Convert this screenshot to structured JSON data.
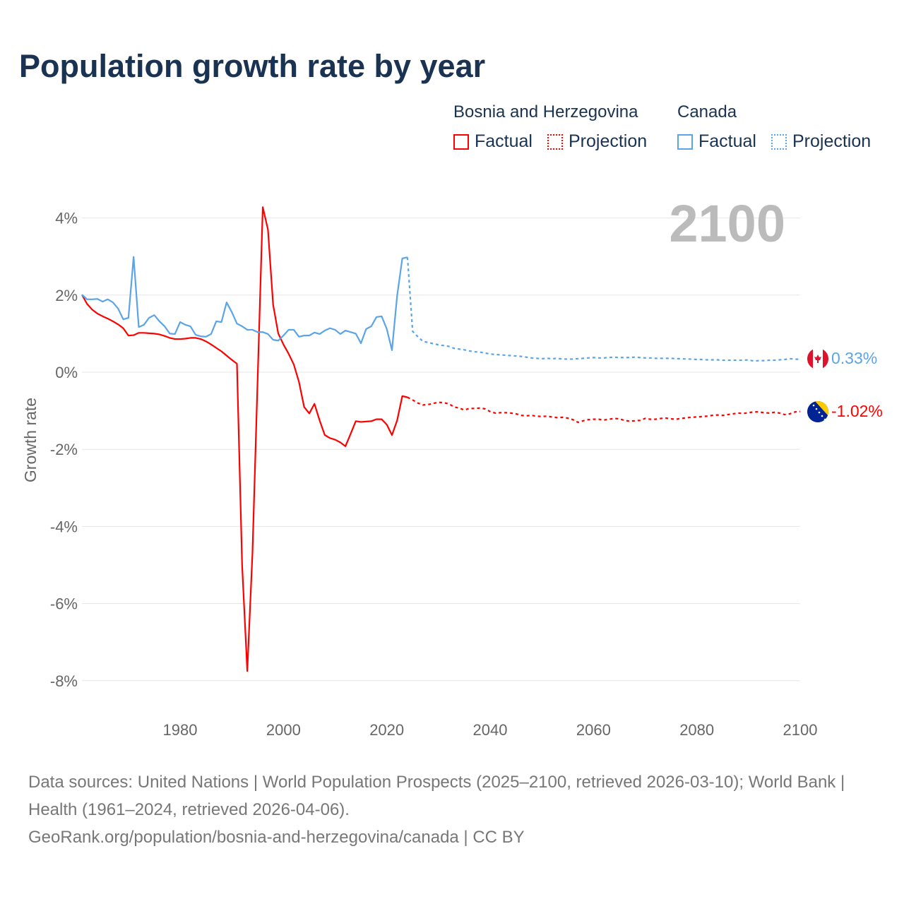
{
  "chart_data": {
    "type": "line",
    "title": "Population growth rate by year",
    "ylabel": "Growth rate",
    "xlabel": "",
    "xlim": [
      1961,
      2100
    ],
    "ylim": [
      -9,
      4.5
    ],
    "y_ticks": [
      4,
      2,
      0,
      -2,
      -4,
      -6,
      -8
    ],
    "y_tick_labels": [
      "4%",
      "2%",
      "0%",
      "-2%",
      "-4%",
      "-6%",
      "-8%"
    ],
    "x_ticks": [
      1980,
      2000,
      2020,
      2040,
      2060,
      2080,
      2100
    ],
    "x_tick_labels": [
      "1980",
      "2000",
      "2020",
      "2040",
      "2060",
      "2080",
      "2100"
    ],
    "year_watermark": "2100",
    "grid": true,
    "legend_position": "top-right",
    "legend": {
      "groups": [
        {
          "name": "Bosnia and Herzegovina",
          "factual": "Factual",
          "projection": "Projection"
        },
        {
          "name": "Canada",
          "factual": "Factual",
          "projection": "Projection"
        }
      ]
    },
    "series": [
      {
        "name": "Bosnia and Herzegovina",
        "color": "#ff0000",
        "end_label": "-1.02%",
        "factual_start": 1961,
        "factual": [
          2.01,
          1.77,
          1.62,
          1.52,
          1.45,
          1.39,
          1.32,
          1.24,
          1.14,
          0.95,
          0.96,
          1.02,
          1.02,
          1.01,
          1.0,
          0.98,
          0.94,
          0.89,
          0.86,
          0.86,
          0.87,
          0.89,
          0.89,
          0.86,
          0.8,
          0.72,
          0.63,
          0.54,
          0.43,
          0.32,
          0.22,
          -5.0,
          -7.75,
          -4.7,
          -0.2,
          4.28,
          3.7,
          1.75,
          1.0,
          0.72,
          0.48,
          0.2,
          -0.25,
          -0.9,
          -1.07,
          -0.82,
          -1.25,
          -1.63,
          -1.71,
          -1.75,
          -1.82,
          -1.92,
          -1.6,
          -1.27,
          -1.29,
          -1.28,
          -1.27,
          -1.22,
          -1.22,
          -1.36,
          -1.63,
          -1.25,
          -0.62,
          -0.65
        ],
        "projection_start": 2025,
        "projection": [
          -0.72,
          -0.8,
          -0.85,
          -0.84,
          -0.81,
          -0.78,
          -0.79,
          -0.82,
          -0.9,
          -0.93,
          -0.98,
          -0.94,
          -0.94,
          -0.93,
          -0.95,
          -1.02,
          -1.06,
          -1.05,
          -1.05,
          -1.06,
          -1.08,
          -1.12,
          -1.13,
          -1.12,
          -1.14,
          -1.15,
          -1.14,
          -1.16,
          -1.18,
          -1.17,
          -1.19,
          -1.23,
          -1.3,
          -1.26,
          -1.23,
          -1.22,
          -1.22,
          -1.24,
          -1.22,
          -1.2,
          -1.21,
          -1.25,
          -1.27,
          -1.26,
          -1.25,
          -1.2,
          -1.22,
          -1.22,
          -1.2,
          -1.19,
          -1.21,
          -1.22,
          -1.2,
          -1.18,
          -1.17,
          -1.16,
          -1.15,
          -1.14,
          -1.12,
          -1.11,
          -1.12,
          -1.1,
          -1.08,
          -1.06,
          -1.07,
          -1.05,
          -1.03,
          -1.03,
          -1.05,
          -1.06,
          -1.04,
          -1.06,
          -1.1,
          -1.08,
          -1.03,
          -1.02
        ]
      },
      {
        "name": "Canada",
        "color": "#5ba4e8",
        "end_label": "0.33%",
        "factual_start": 1961,
        "factual": [
          2.01,
          1.89,
          1.89,
          1.9,
          1.83,
          1.89,
          1.81,
          1.65,
          1.37,
          1.41,
          2.99,
          1.17,
          1.23,
          1.41,
          1.48,
          1.32,
          1.19,
          1.0,
          0.99,
          1.3,
          1.23,
          1.19,
          0.97,
          0.93,
          0.92,
          0.99,
          1.32,
          1.3,
          1.81,
          1.56,
          1.26,
          1.19,
          1.1,
          1.1,
          1.04,
          1.04,
          0.99,
          0.84,
          0.82,
          0.95,
          1.1,
          1.1,
          0.92,
          0.95,
          0.95,
          1.03,
          0.99,
          1.08,
          1.14,
          1.1,
          0.99,
          1.08,
          1.04,
          1.0,
          0.75,
          1.12,
          1.19,
          1.43,
          1.45,
          1.12,
          0.57,
          1.98,
          2.95,
          2.98
        ],
        "projection_start": 2025,
        "projection": [
          1.06,
          0.92,
          0.8,
          0.77,
          0.74,
          0.71,
          0.69,
          0.67,
          0.62,
          0.6,
          0.58,
          0.55,
          0.53,
          0.52,
          0.5,
          0.47,
          0.46,
          0.45,
          0.44,
          0.43,
          0.42,
          0.41,
          0.39,
          0.37,
          0.36,
          0.35,
          0.36,
          0.35,
          0.36,
          0.34,
          0.34,
          0.34,
          0.35,
          0.36,
          0.37,
          0.38,
          0.37,
          0.37,
          0.38,
          0.39,
          0.38,
          0.38,
          0.38,
          0.39,
          0.38,
          0.37,
          0.37,
          0.36,
          0.36,
          0.36,
          0.36,
          0.35,
          0.35,
          0.34,
          0.34,
          0.33,
          0.33,
          0.32,
          0.32,
          0.32,
          0.31,
          0.31,
          0.31,
          0.31,
          0.31,
          0.32,
          0.29,
          0.3,
          0.3,
          0.31,
          0.31,
          0.32,
          0.33,
          0.35,
          0.34,
          0.33
        ]
      }
    ]
  },
  "footer": {
    "line1": "Data sources: United Nations | World Population Prospects (2025–2100, retrieved 2026-03-10); World Bank | Health (1961–2024, retrieved 2026-04-06).",
    "line2": "GeoRank.org/population/bosnia-and-herzegovina/canada | CC BY"
  }
}
